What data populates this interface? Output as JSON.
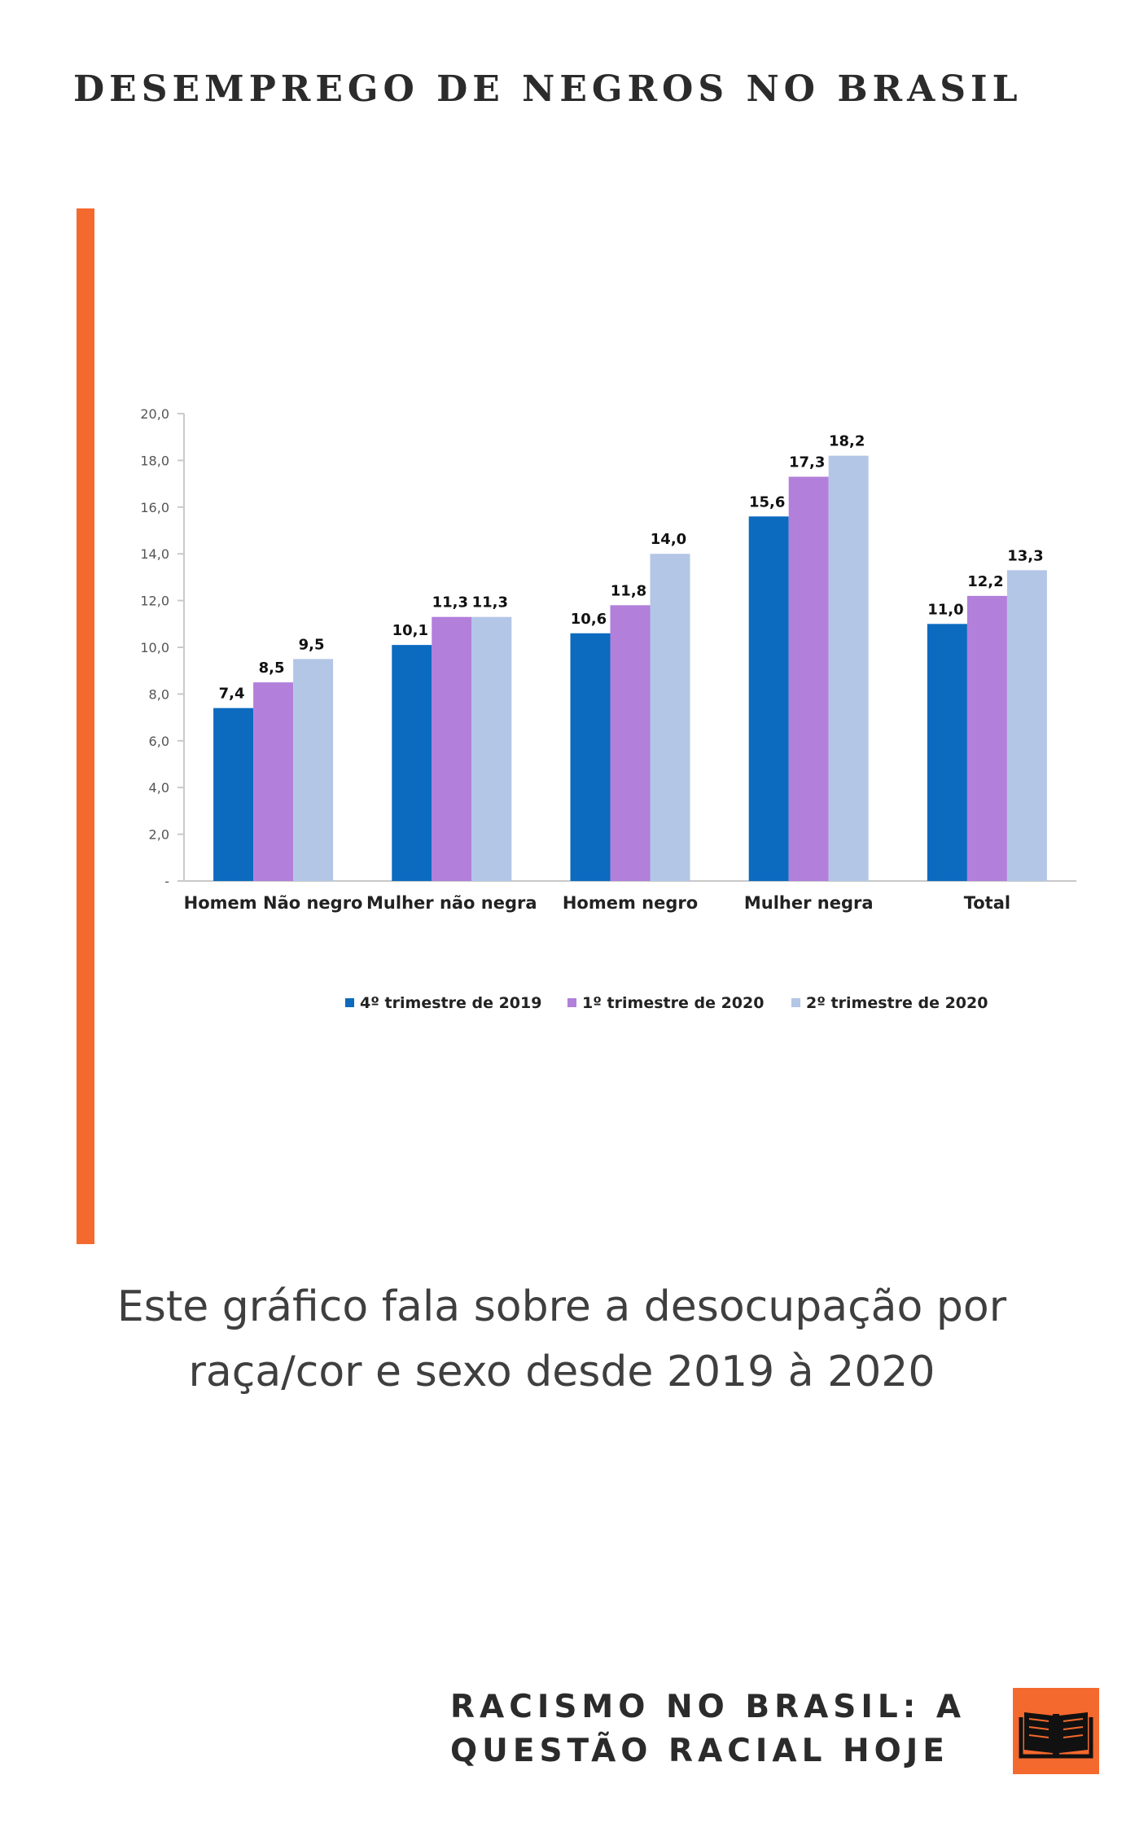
{
  "header": {
    "title": "DESEMPREGO DE NEGROS NO BRASIL"
  },
  "caption": "Este gráfico fala sobre a desocupação por raça/cor e sexo desde 2019 à 2020",
  "footer": {
    "title": "RACISMO NO BRASIL: A QUESTÃO RACIAL HOJE",
    "icon": "open-book-icon"
  },
  "colors": {
    "accent": "#f4692e",
    "series": [
      "#0c6abf",
      "#b27fda",
      "#b3c6e6"
    ]
  },
  "chart_data": {
    "type": "bar",
    "title": "",
    "xlabel": "",
    "ylabel": "",
    "categories": [
      "Homem Não negro",
      "Mulher não negra",
      "Homem negro",
      "Mulher negra",
      "Total"
    ],
    "series": [
      {
        "name": "4º trimestre de 2019",
        "values": [
          7.4,
          10.1,
          10.6,
          15.6,
          11.0
        ],
        "labels": [
          "7,4",
          "10,1",
          "10,6",
          "15,6",
          "11,0"
        ]
      },
      {
        "name": "1º trimestre de 2020",
        "values": [
          8.5,
          11.3,
          11.8,
          17.3,
          12.2
        ],
        "labels": [
          "8,5",
          "11,3",
          "11,8",
          "17,3",
          "12,2"
        ]
      },
      {
        "name": "2º trimestre de 2020",
        "values": [
          9.5,
          11.3,
          14.0,
          18.2,
          13.3
        ],
        "labels": [
          "9,5",
          "11,3",
          "14,0",
          "18,2",
          "13,3"
        ]
      }
    ],
    "ylim": [
      0,
      20
    ],
    "yticks": [
      "-",
      "2,0",
      "4,0",
      "6,0",
      "8,0",
      "10,0",
      "12,0",
      "14,0",
      "16,0",
      "18,0",
      "20,0"
    ],
    "legend_position": "bottom",
    "grid": false
  }
}
